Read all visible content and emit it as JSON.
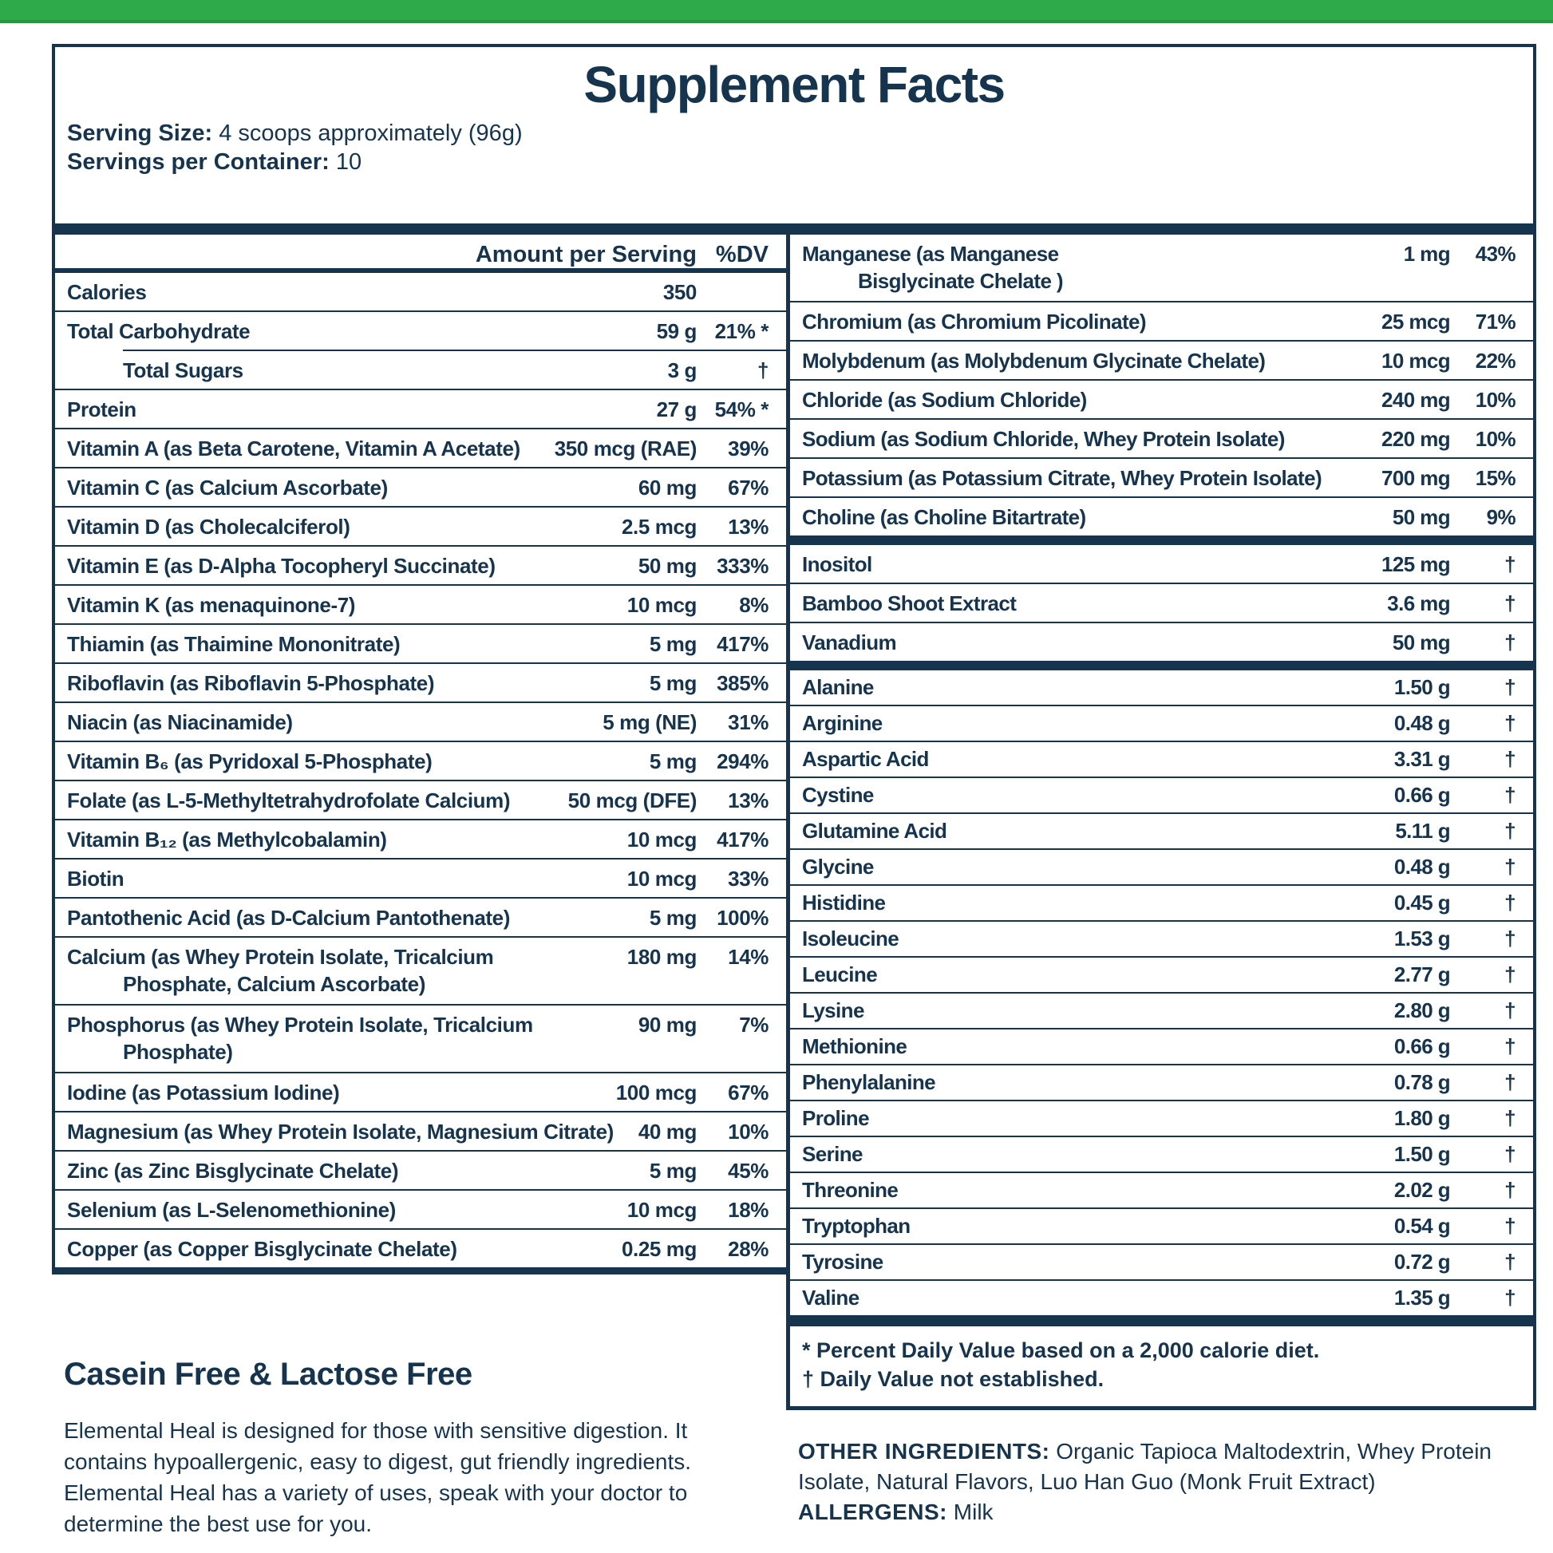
{
  "colors": {
    "navy": "#16344e",
    "green": "#2faa4b",
    "green_edge": "#27963f",
    "background": "#ffffff"
  },
  "title": "Supplement Facts",
  "serving": {
    "size_label": "Serving Size:",
    "size_value": "4 scoops approximately (96g)",
    "container_label": "Servings per Container:",
    "container_value": "10"
  },
  "table": {
    "header": {
      "amount": "Amount per Serving",
      "dv": "%DV"
    },
    "left_rows": [
      {
        "label": "Calories",
        "amount": "350",
        "dv": ""
      },
      {
        "label": "Total Carbohydrate",
        "amount": "59 g",
        "dv": "21% *"
      },
      {
        "label": "Total Sugars",
        "amount": "3 g",
        "dv": "†",
        "style": "sub"
      },
      {
        "label": "Protein",
        "amount": "27 g",
        "dv": "54% *"
      },
      {
        "label": "Vitamin A (as Beta Carotene, Vitamin A Acetate)",
        "amount": "350 mcg (RAE)",
        "dv": "39%"
      },
      {
        "label": "Vitamin C (as Calcium Ascorbate)",
        "amount": "60 mg",
        "dv": "67%"
      },
      {
        "label": "Vitamin D (as Cholecalciferol)",
        "amount": "2.5 mcg",
        "dv": "13%"
      },
      {
        "label": "Vitamin E (as D-Alpha Tocopheryl Succinate)",
        "amount": "50 mg",
        "dv": "333%"
      },
      {
        "label": "Vitamin K (as menaquinone-7)",
        "amount": "10 mcg",
        "dv": "8%"
      },
      {
        "label": "Thiamin (as Thaimine Mononitrate)",
        "amount": "5 mg",
        "dv": "417%"
      },
      {
        "label": "Riboflavin (as Riboflavin 5-Phosphate)",
        "amount": "5 mg",
        "dv": "385%"
      },
      {
        "label": "Niacin (as Niacinamide)",
        "amount": "5 mg (NE)",
        "dv": "31%"
      },
      {
        "label": "Vitamin B₆ (as Pyridoxal 5-Phosphate)",
        "amount": "5 mg",
        "dv": "294%"
      },
      {
        "label": "Folate (as L-5-Methyltetrahydrofolate Calcium)",
        "amount": "50 mcg (DFE)",
        "dv": "13%"
      },
      {
        "label": "Vitamin B₁₂ (as Methylcobalamin)",
        "amount": "10 mcg",
        "dv": "417%"
      },
      {
        "label": "Biotin",
        "amount": "10 mcg",
        "dv": "33%"
      },
      {
        "label": "Pantothenic Acid (as D-Calcium Pantothenate)",
        "amount": "5 mg",
        "dv": "100%"
      },
      {
        "label": "Calcium (as Whey Protein Isolate, Tricalcium\nPhosphate, Calcium Ascorbate)",
        "amount": "180 mg",
        "dv": "14%",
        "style": "hang"
      },
      {
        "label": "Phosphorus (as Whey Protein Isolate, Tricalcium\nPhosphate)",
        "amount": "90 mg",
        "dv": "7%",
        "style": "hang"
      },
      {
        "label": "Iodine (as Potassium Iodine)",
        "amount": "100 mcg",
        "dv": "67%"
      },
      {
        "label": "Magnesium (as Whey Protein Isolate, Magnesium Citrate)",
        "amount": "40 mg",
        "dv": "10%"
      },
      {
        "label": "Zinc (as Zinc Bisglycinate Chelate)",
        "amount": "5 mg",
        "dv": "45%"
      },
      {
        "label": "Selenium (as L-Selenomethionine)",
        "amount": "10 mcg",
        "dv": "18%"
      },
      {
        "label": "Copper (as Copper Bisglycinate Chelate)",
        "amount": "0.25 mg",
        "dv": "28%"
      }
    ],
    "right_sections": [
      {
        "name": "minerals",
        "rows": [
          {
            "label": "Manganese (as Manganese\nBisglycinate Chelate )",
            "amount": "1 mg",
            "dv": "43%",
            "style": "hang"
          },
          {
            "label": "Chromium (as Chromium Picolinate)",
            "amount": "25 mcg",
            "dv": "71%"
          },
          {
            "label": "Molybdenum (as Molybdenum Glycinate Chelate)",
            "amount": "10 mcg",
            "dv": "22%"
          },
          {
            "label": "Chloride (as Sodium Chloride)",
            "amount": "240 mg",
            "dv": "10%"
          },
          {
            "label": "Sodium (as Sodium Chloride, Whey Protein Isolate)",
            "amount": "220 mg",
            "dv": "10%"
          },
          {
            "label": "Potassium (as Potassium Citrate, Whey Protein Isolate)",
            "amount": "700 mg",
            "dv": "15%"
          },
          {
            "label": "Choline (as Choline Bitartrate)",
            "amount": "50 mg",
            "dv": "9%"
          }
        ]
      },
      {
        "name": "extras",
        "rows": [
          {
            "label": "Inositol",
            "amount": "125 mg",
            "dv": "†"
          },
          {
            "label": "Bamboo Shoot Extract",
            "amount": "3.6 mg",
            "dv": "†"
          },
          {
            "label": "Vanadium",
            "amount": "50 mg",
            "dv": "†"
          }
        ]
      },
      {
        "name": "amino-acids",
        "rows": [
          {
            "label": "Alanine",
            "amount": "1.50 g",
            "dv": "†"
          },
          {
            "label": "Arginine",
            "amount": "0.48 g",
            "dv": "†"
          },
          {
            "label": "Aspartic Acid",
            "amount": "3.31 g",
            "dv": "†"
          },
          {
            "label": "Cystine",
            "amount": "0.66 g",
            "dv": "†"
          },
          {
            "label": "Glutamine Acid",
            "amount": "5.11 g",
            "dv": "†"
          },
          {
            "label": "Glycine",
            "amount": "0.48 g",
            "dv": "†"
          },
          {
            "label": "Histidine",
            "amount": "0.45 g",
            "dv": "†"
          },
          {
            "label": "Isoleucine",
            "amount": "1.53 g",
            "dv": "†"
          },
          {
            "label": "Leucine",
            "amount": "2.77 g",
            "dv": "†"
          },
          {
            "label": "Lysine",
            "amount": "2.80 g",
            "dv": "†"
          },
          {
            "label": "Methionine",
            "amount": "0.66 g",
            "dv": "†"
          },
          {
            "label": "Phenylalanine",
            "amount": "0.78 g",
            "dv": "†"
          },
          {
            "label": "Proline",
            "amount": "1.80 g",
            "dv": "†"
          },
          {
            "label": "Serine",
            "amount": "1.50 g",
            "dv": "†"
          },
          {
            "label": "Threonine",
            "amount": "2.02 g",
            "dv": "†"
          },
          {
            "label": "Tryptophan",
            "amount": "0.54 g",
            "dv": "†"
          },
          {
            "label": "Tyrosine",
            "amount": "0.72 g",
            "dv": "†"
          },
          {
            "label": "Valine",
            "amount": "1.35 g",
            "dv": "†"
          }
        ]
      }
    ],
    "footnotes": "* Percent Daily Value based on a 2,000 calorie diet.\n† Daily Value not established."
  },
  "claims": {
    "heading": "Casein Free & Lactose Free",
    "body": "Elemental Heal is designed for those with sensitive digestion. It contains hypoallergenic, easy to digest, gut friendly ingredients. Elemental Heal has a variety of uses, speak with your doctor to determine the best use for you."
  },
  "other": {
    "label": "OTHER INGREDIENTS:",
    "value": " Organic Tapioca Maltodextrin, Whey Protein Isolate, Natural Flavors, Luo Han Guo (Monk Fruit Extract)",
    "allergens_label": "ALLERGENS:",
    "allergens_value": " Milk"
  }
}
